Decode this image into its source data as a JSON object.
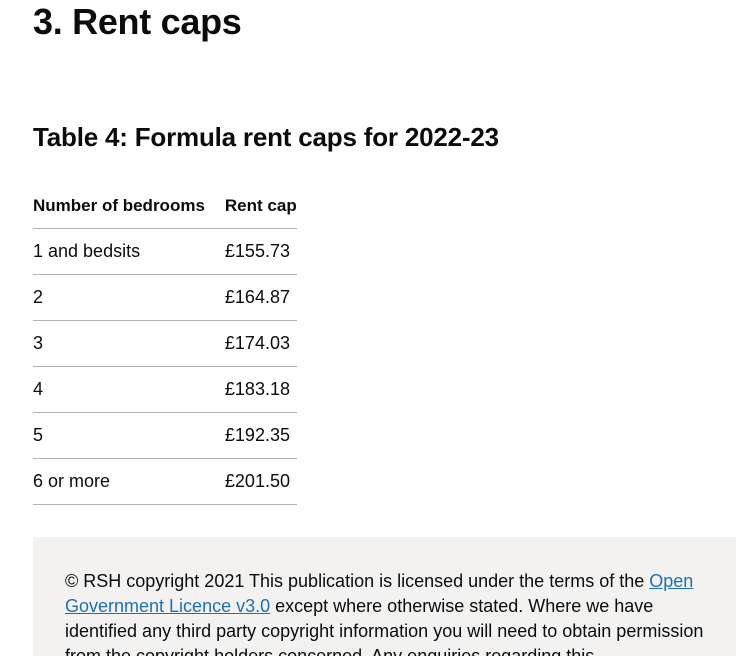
{
  "section": {
    "title": "3. Rent caps"
  },
  "table": {
    "title": "Table 4: Formula rent caps for 2022-23",
    "headers": [
      "Number of bedrooms",
      "Rent cap"
    ],
    "rows": [
      [
        "1 and bedsits",
        "£155.73"
      ],
      [
        "2",
        "£164.87"
      ],
      [
        "3",
        "£174.03"
      ],
      [
        "4",
        "£183.18"
      ],
      [
        "5",
        "£192.35"
      ],
      [
        "6 or more",
        "£201.50"
      ]
    ]
  },
  "footer": {
    "text_before_link": "© RSH copyright 2021 This publication is licensed under the terms of the ",
    "link_text": "Open Government Licence v3.0",
    "text_after_link": " except where otherwise stated. Where we have identified any third party copyright information you will need to obtain permission from the copyright holders concerned. Any enquiries regarding this"
  }
}
